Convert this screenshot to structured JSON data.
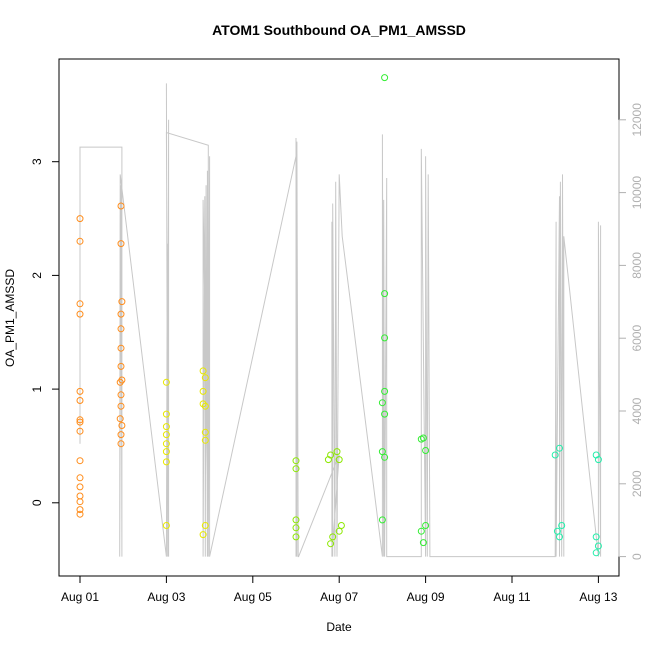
{
  "chart_data": {
    "type": "scatter",
    "title": "ATOM1 Southbound OA_PM1_AMSSD",
    "xlabel": "Date",
    "ylabel": "OA_PM1_AMSSD",
    "x_range_days": [
      0,
      12.2
    ],
    "ylim": [
      -0.6,
      3.9
    ],
    "y2lim": [
      -300,
      13200
    ],
    "x_ticks": [
      {
        "label": "Aug 01",
        "day": 0
      },
      {
        "label": "Aug 03",
        "day": 2
      },
      {
        "label": "Aug 05",
        "day": 4
      },
      {
        "label": "Aug 07",
        "day": 6
      },
      {
        "label": "Aug 09",
        "day": 8
      },
      {
        "label": "Aug 11",
        "day": 10
      },
      {
        "label": "Aug 13",
        "day": 12
      }
    ],
    "y_ticks": [
      {
        "label": "0",
        "value": 0
      },
      {
        "label": "1",
        "value": 1
      },
      {
        "label": "2",
        "value": 2
      },
      {
        "label": "3",
        "value": 3
      }
    ],
    "y2_ticks": [
      {
        "label": "0",
        "value": 0
      },
      {
        "label": "2000",
        "value": 2000
      },
      {
        "label": "4000",
        "value": 4000
      },
      {
        "label": "6000",
        "value": 6000
      },
      {
        "label": "8000",
        "value": 8000
      },
      {
        "label": "10000",
        "value": 10000
      },
      {
        "label": "12000",
        "value": 12000
      }
    ],
    "grid": false,
    "series": [
      {
        "color": "#ff8c1a",
        "points": [
          [
            0.0,
            2.5
          ],
          [
            0.0,
            2.3
          ],
          [
            0.0,
            1.75
          ],
          [
            0.0,
            1.66
          ],
          [
            0.0,
            0.98
          ],
          [
            0.0,
            0.9
          ],
          [
            0.0,
            0.73
          ],
          [
            0.0,
            0.71
          ],
          [
            0.0,
            0.63
          ],
          [
            0.0,
            0.37
          ],
          [
            0.0,
            0.22
          ],
          [
            0.0,
            0.14
          ],
          [
            0.0,
            0.06
          ],
          [
            0.0,
            0.01
          ],
          [
            0.0,
            -0.06
          ],
          [
            0.0,
            -0.1
          ],
          [
            0.95,
            2.61
          ],
          [
            0.95,
            2.28
          ],
          [
            0.97,
            1.77
          ],
          [
            0.95,
            1.66
          ],
          [
            0.95,
            1.53
          ],
          [
            0.95,
            1.36
          ],
          [
            0.95,
            1.2
          ],
          [
            0.97,
            1.08
          ],
          [
            0.93,
            1.06
          ],
          [
            0.95,
            0.95
          ],
          [
            0.95,
            0.85
          ],
          [
            0.93,
            0.74
          ],
          [
            0.97,
            0.68
          ],
          [
            0.95,
            0.6
          ],
          [
            0.95,
            0.52
          ]
        ]
      },
      {
        "color": "#e8e800",
        "points": [
          [
            2.0,
            1.06
          ],
          [
            2.0,
            0.78
          ],
          [
            2.0,
            0.67
          ],
          [
            2.0,
            0.6
          ],
          [
            2.0,
            0.52
          ],
          [
            2.0,
            0.45
          ],
          [
            2.0,
            0.36
          ],
          [
            2.0,
            -0.2
          ],
          [
            2.85,
            1.16
          ],
          [
            2.9,
            1.1
          ],
          [
            2.85,
            0.98
          ],
          [
            2.85,
            0.87
          ],
          [
            2.9,
            0.85
          ],
          [
            2.9,
            0.62
          ],
          [
            2.9,
            0.55
          ],
          [
            2.85,
            -0.28
          ],
          [
            2.9,
            -0.2
          ]
        ]
      },
      {
        "color": "#8ce800",
        "points": [
          [
            5.0,
            0.37
          ],
          [
            5.0,
            0.3
          ],
          [
            5.0,
            -0.15
          ],
          [
            5.0,
            -0.22
          ],
          [
            5.0,
            -0.3
          ],
          [
            5.8,
            0.42
          ],
          [
            5.75,
            0.38
          ],
          [
            5.8,
            -0.36
          ],
          [
            5.85,
            -0.3
          ],
          [
            5.95,
            0.45
          ],
          [
            6.0,
            0.38
          ],
          [
            6.05,
            -0.2
          ],
          [
            6.0,
            -0.25
          ]
        ]
      },
      {
        "color": "#33ee33",
        "points": [
          [
            7.05,
            3.74
          ],
          [
            7.05,
            1.84
          ],
          [
            7.05,
            1.45
          ],
          [
            7.05,
            0.98
          ],
          [
            7.0,
            0.88
          ],
          [
            7.05,
            0.78
          ],
          [
            7.0,
            0.45
          ],
          [
            7.05,
            0.4
          ],
          [
            7.0,
            -0.15
          ],
          [
            7.95,
            0.57
          ],
          [
            7.9,
            0.56
          ],
          [
            8.0,
            0.46
          ],
          [
            7.95,
            -0.35
          ],
          [
            7.9,
            -0.25
          ],
          [
            8.0,
            -0.2
          ]
        ]
      },
      {
        "color": "#22eeaa",
        "points": [
          [
            11.1,
            0.48
          ],
          [
            11.0,
            0.42
          ],
          [
            11.1,
            -0.3
          ],
          [
            11.05,
            -0.25
          ],
          [
            11.15,
            -0.2
          ],
          [
            11.95,
            0.42
          ],
          [
            12.0,
            0.38
          ],
          [
            11.95,
            -0.3
          ],
          [
            11.95,
            -0.44
          ],
          [
            12.0,
            -0.38
          ]
        ]
      }
    ],
    "secondary_series": {
      "color": "#c8c8c8",
      "x": [
        0.0,
        0.0,
        0.97,
        0.97,
        0.95,
        0.92,
        0.93,
        2.0,
        2.02,
        2.03,
        2.0,
        2.03,
        2.05,
        2.05,
        2.0,
        2.97,
        2.97,
        2.85,
        2.85,
        2.89,
        2.9,
        2.92,
        2.95,
        2.95,
        2.97,
        3.0,
        3.0,
        5.0,
        5.0,
        5.0,
        5.02,
        5.02,
        5.05,
        5.06,
        6.0,
        6.0,
        5.83,
        5.83,
        5.85,
        5.85,
        5.9,
        5.92,
        5.95,
        6.0,
        6.07,
        7.0,
        7.0,
        7.03,
        7.03,
        7.05,
        7.1,
        7.1,
        7.9,
        7.9,
        8.0,
        8.0,
        8.04,
        8.06,
        8.1,
        11.0,
        11.02,
        11.02,
        11.1,
        11.1,
        11.12,
        11.15,
        11.17,
        11.2,
        11.2,
        12.0,
        12.0,
        12.05,
        12.05
      ],
      "y": [
        3100,
        11250,
        11250,
        0,
        10200,
        0,
        10500,
        0,
        8600,
        0,
        13000,
        0,
        12000,
        0,
        11650,
        11300,
        0,
        9800,
        0,
        9900,
        0,
        10200,
        0,
        10600,
        0,
        11000,
        0,
        11000,
        0,
        11500,
        0,
        11400,
        0,
        0,
        2800,
        2800,
        0,
        9200,
        0,
        9700,
        0,
        10300,
        0,
        10500,
        8800,
        0,
        11600,
        0,
        9800,
        0,
        10400,
        0,
        0,
        11200,
        0,
        11000,
        0,
        10500,
        0,
        0,
        9200,
        0,
        9900,
        0,
        10300,
        0,
        10500,
        0,
        8800,
        0,
        9200,
        0,
        9100
      ]
    }
  }
}
